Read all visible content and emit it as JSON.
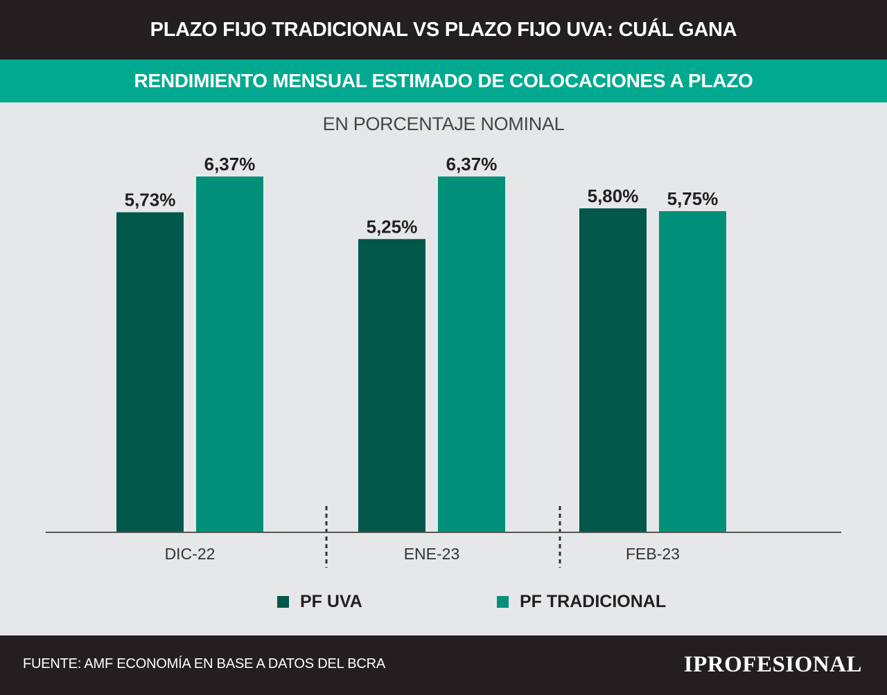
{
  "header": {
    "title": "PLAZO FIJO TRADICIONAL VS PLAZO FIJO UVA: CUÁL GANA",
    "subtitle": "RENDIMIENTO MENSUAL ESTIMADO DE COLOCACIONES A PLAZO"
  },
  "chart_data": {
    "type": "bar",
    "title": "RENDIMIENTO MENSUAL ESTIMADO DE COLOCACIONES A PLAZO",
    "unit_label": "EN PORCENTAJE NOMINAL",
    "categories": [
      "DIC-22",
      "ENE-23",
      "FEB-23"
    ],
    "series": [
      {
        "name": "PF UVA",
        "values": [
          5.73,
          5.25,
          5.8
        ],
        "labels": [
          "5,73%",
          "5,25%",
          "5,80%"
        ],
        "color": "#00574a"
      },
      {
        "name": "PF TRADICIONAL",
        "values": [
          6.37,
          6.37,
          5.75
        ],
        "labels": [
          "6,37%",
          "6,37%",
          "5,75%"
        ],
        "color": "#00907a"
      }
    ],
    "ylim": [
      0,
      6.37
    ],
    "grid": false,
    "legend": "bottom-center"
  },
  "footer": {
    "source": "FUENTE: AMF ECONOMÍA EN BASE A DATOS DEL BCRA",
    "brand": "IPROFESIONAL"
  }
}
